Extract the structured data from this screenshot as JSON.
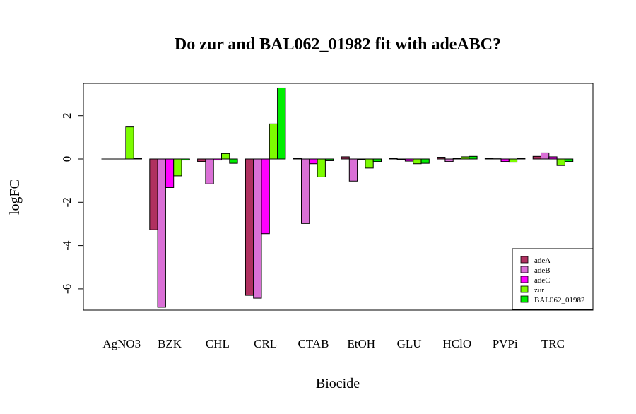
{
  "chart_data": {
    "type": "bar",
    "title": "Do zur and BAL062_01982 fit with adeABC?",
    "xlabel": "Biocide",
    "ylabel": "logFC",
    "ylim": [
      -7,
      3.5
    ],
    "yticks": [
      2,
      0,
      -2,
      -4,
      -6
    ],
    "yticks_text": [
      "2",
      "0",
      "-2",
      "-4",
      "-6"
    ],
    "grid": false,
    "legend_position": "bottom-right",
    "categories": [
      "AgNO3",
      "BZK",
      "CHL",
      "CRL",
      "CTAB",
      "EtOH",
      "GLU",
      "HClO",
      "PVPi",
      "TRC"
    ],
    "series": [
      {
        "name": "adeA",
        "color": "#b03060",
        "values": [
          0.0,
          -3.27,
          -0.12,
          -6.3,
          0.03,
          0.1,
          0.03,
          0.08,
          0.03,
          0.12
        ]
      },
      {
        "name": "adeB",
        "color": "#da70d6",
        "values": [
          0.0,
          -6.85,
          -1.15,
          -6.43,
          -2.98,
          -1.02,
          -0.03,
          -0.12,
          0.01,
          0.28
        ]
      },
      {
        "name": "adeC",
        "color": "#ff00ff",
        "values": [
          0.0,
          -1.32,
          -0.05,
          -3.45,
          -0.22,
          -0.02,
          -0.1,
          0.03,
          -0.12,
          0.1
        ]
      },
      {
        "name": "zur",
        "color": "#7cfc00",
        "values": [
          1.48,
          -0.78,
          0.25,
          1.62,
          -0.83,
          -0.42,
          -0.22,
          0.1,
          -0.15,
          -0.3
        ]
      },
      {
        "name": "BAL062_01982",
        "color": "#00ee00",
        "values": [
          0.02,
          -0.05,
          -0.2,
          3.28,
          -0.08,
          -0.12,
          -0.2,
          0.12,
          0.03,
          -0.12
        ]
      }
    ]
  }
}
